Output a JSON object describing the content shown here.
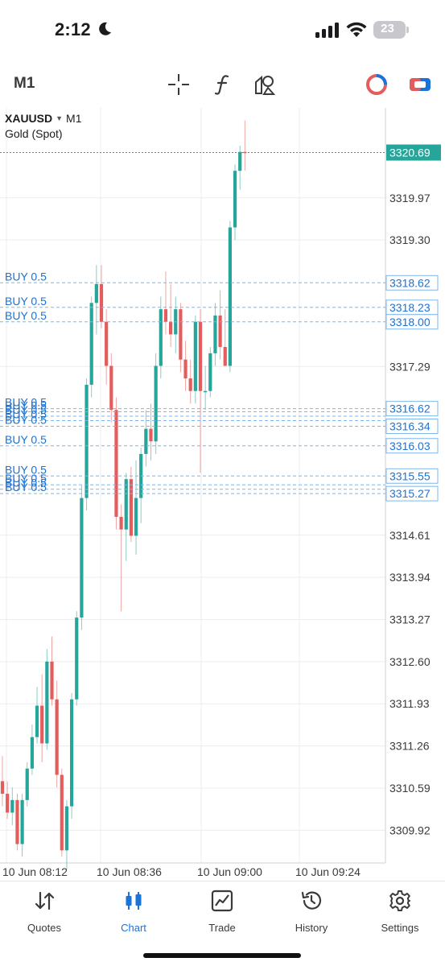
{
  "status_bar": {
    "time": "2:12",
    "battery": "23"
  },
  "toolbar": {
    "timeframe": "M1"
  },
  "chart": {
    "symbol": "XAUUSD",
    "symbol_timeframe": "M1",
    "description": "Gold (Spot)",
    "colors": {
      "bull": "#26a69a",
      "bear": "#e45d5d",
      "accent": "#1a73d9",
      "grid": "#ececec",
      "order_line": "#7fb6ea"
    }
  },
  "chart_data": {
    "type": "candlestick",
    "ylim": [
      3309.4,
      3321.4
    ],
    "yticks": [
      "3319.97",
      "3319.30",
      "3317.29",
      "3314.61",
      "3313.94",
      "3313.27",
      "3312.60",
      "3311.93",
      "3311.26",
      "3310.59",
      "3309.92"
    ],
    "xticks": [
      "10 Jun 08:12",
      "10 Jun 08:36",
      "10 Jun 09:00",
      "10 Jun 09:24"
    ],
    "current_price": "3320.69",
    "orders": [
      {
        "label": "BUY 0.5",
        "price": 3318.62,
        "price_label": "3318.62"
      },
      {
        "label": "BUY 0.5",
        "price": 3318.23,
        "price_label": "3318.23"
      },
      {
        "label": "BUY 0.5",
        "price": 3318.0,
        "price_label": "3318.00"
      },
      {
        "label": "BUY 0.5",
        "price": 3316.62,
        "price_label": "3316.62"
      },
      {
        "label": "BUY 0.5",
        "price": 3316.57,
        "price_label": ""
      },
      {
        "label": "BUY 0.5",
        "price": 3316.5,
        "price_label": ""
      },
      {
        "label": "BUY 0.5",
        "price": 3316.43,
        "price_label": ""
      },
      {
        "label": "BUY 0.5",
        "price": 3316.34,
        "price_label": "3316.34"
      },
      {
        "label": "BUY 0.5",
        "price": 3316.03,
        "price_label": "3316.03"
      },
      {
        "label": "BUY 0.5",
        "price": 3315.55,
        "price_label": "3315.55"
      },
      {
        "label": "BUY 0.5",
        "price": 3315.41,
        "price_label": ""
      },
      {
        "label": "BUY 0.5",
        "price": 3315.34,
        "price_label": ""
      },
      {
        "label": "BUY 0.5",
        "price": 3315.27,
        "price_label": "3315.27"
      }
    ],
    "candles": [
      [
        3310.7,
        3311.1,
        3310.3,
        3310.5
      ],
      [
        3310.5,
        3310.7,
        3310.1,
        3310.2
      ],
      [
        3310.2,
        3310.6,
        3310.0,
        3310.4
      ],
      [
        3310.4,
        3310.5,
        3309.6,
        3309.7
      ],
      [
        3309.7,
        3310.5,
        3309.5,
        3310.4
      ],
      [
        3310.4,
        3311.0,
        3310.3,
        3310.9
      ],
      [
        3310.9,
        3311.6,
        3310.8,
        3311.4
      ],
      [
        3311.4,
        3312.2,
        3311.3,
        3311.9
      ],
      [
        3311.9,
        3312.4,
        3311.0,
        3311.3
      ],
      [
        3311.3,
        3312.8,
        3311.2,
        3312.6
      ],
      [
        3312.6,
        3313.0,
        3311.9,
        3312.0
      ],
      [
        3312.0,
        3312.3,
        3310.6,
        3310.8
      ],
      [
        3310.8,
        3310.9,
        3309.5,
        3309.6
      ],
      [
        3309.6,
        3310.4,
        3309.3,
        3310.3
      ],
      [
        3310.3,
        3312.1,
        3310.1,
        3312.0
      ],
      [
        3312.0,
        3313.4,
        3311.9,
        3313.3
      ],
      [
        3313.3,
        3315.4,
        3313.1,
        3315.2
      ],
      [
        3315.2,
        3317.1,
        3315.0,
        3317.0
      ],
      [
        3317.0,
        3318.4,
        3316.8,
        3318.3
      ],
      [
        3318.3,
        3318.9,
        3317.8,
        3318.6
      ],
      [
        3318.6,
        3318.9,
        3317.9,
        3318.0
      ],
      [
        3318.0,
        3318.2,
        3317.0,
        3317.3
      ],
      [
        3317.3,
        3317.5,
        3316.4,
        3316.6
      ],
      [
        3316.6,
        3316.8,
        3314.7,
        3314.9
      ],
      [
        3314.9,
        3315.1,
        3313.4,
        3314.7
      ],
      [
        3314.7,
        3315.6,
        3314.2,
        3315.5
      ],
      [
        3315.5,
        3315.7,
        3314.5,
        3314.6
      ],
      [
        3314.6,
        3315.8,
        3314.3,
        3315.2
      ],
      [
        3315.2,
        3316.0,
        3314.8,
        3315.9
      ],
      [
        3315.9,
        3316.6,
        3315.7,
        3316.3
      ],
      [
        3316.3,
        3316.7,
        3315.8,
        3316.1
      ],
      [
        3316.1,
        3317.5,
        3315.9,
        3317.3
      ],
      [
        3317.3,
        3318.4,
        3317.1,
        3318.2
      ],
      [
        3318.2,
        3318.8,
        3317.8,
        3318.0
      ],
      [
        3318.0,
        3318.6,
        3317.6,
        3317.8
      ],
      [
        3317.8,
        3318.4,
        3317.5,
        3318.2
      ],
      [
        3318.2,
        3318.3,
        3317.2,
        3317.4
      ],
      [
        3317.4,
        3317.7,
        3316.9,
        3317.1
      ],
      [
        3317.1,
        3317.4,
        3316.7,
        3316.9
      ],
      [
        3316.9,
        3318.1,
        3316.7,
        3318.0
      ],
      [
        3318.0,
        3318.2,
        3315.6,
        3316.9
      ],
      [
        3316.9,
        3317.3,
        3316.6,
        3316.9
      ],
      [
        3316.9,
        3317.6,
        3316.8,
        3317.5
      ],
      [
        3317.5,
        3318.3,
        3317.3,
        3318.1
      ],
      [
        3318.1,
        3318.5,
        3317.4,
        3317.6
      ],
      [
        3317.6,
        3318.2,
        3317.3,
        3317.3
      ],
      [
        3317.3,
        3319.6,
        3317.2,
        3319.5
      ],
      [
        3319.5,
        3320.5,
        3319.3,
        3320.4
      ],
      [
        3320.4,
        3320.8,
        3320.1,
        3320.7
      ],
      [
        3320.7,
        3321.2,
        3320.4,
        3320.69
      ]
    ]
  },
  "bottom_nav": {
    "items": [
      {
        "label": "Quotes"
      },
      {
        "label": "Chart"
      },
      {
        "label": "Trade"
      },
      {
        "label": "History"
      },
      {
        "label": "Settings"
      }
    ]
  }
}
